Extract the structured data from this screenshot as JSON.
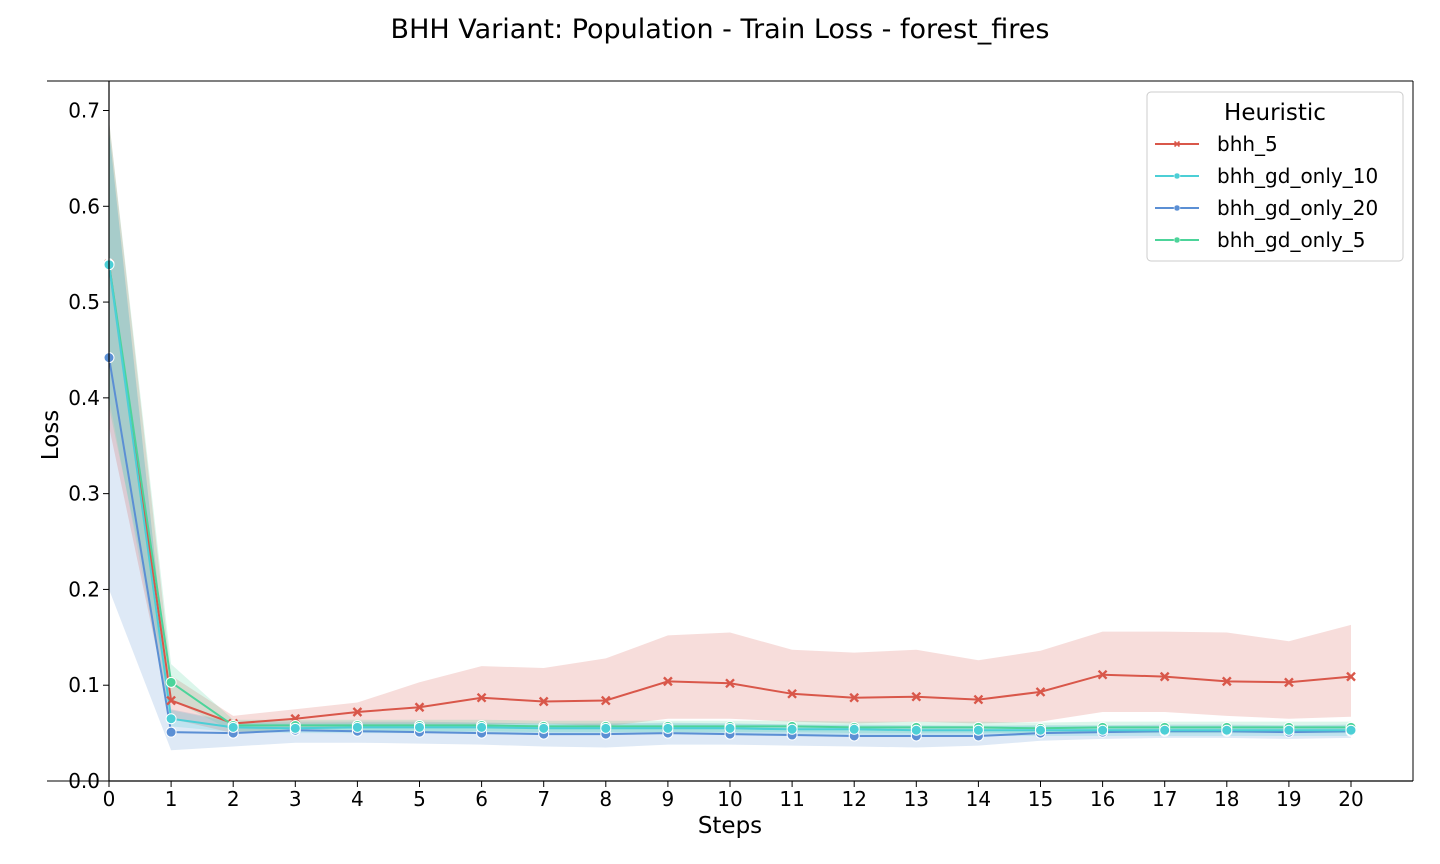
{
  "chart_data": {
    "type": "line",
    "title": "BHH Variant: Population - Train Loss - forest_fires",
    "xlabel": "Steps",
    "ylabel": "Loss",
    "xlim": [
      0,
      21
    ],
    "ylim": [
      0.0,
      0.73
    ],
    "xticks": [
      0,
      1,
      2,
      3,
      4,
      5,
      6,
      7,
      8,
      9,
      10,
      11,
      12,
      13,
      14,
      15,
      16,
      17,
      18,
      19,
      20
    ],
    "yticks": [
      0.0,
      0.1,
      0.2,
      0.3,
      0.4,
      0.5,
      0.6,
      0.7
    ],
    "ytick_labels": [
      "0.0",
      "0.1",
      "0.2",
      "0.3",
      "0.4",
      "0.5",
      "0.6",
      "0.7"
    ],
    "legend": {
      "title": "Heuristic",
      "position": "top-right"
    },
    "x": [
      0,
      1,
      2,
      3,
      4,
      5,
      6,
      7,
      8,
      9,
      10,
      11,
      12,
      13,
      14,
      15,
      16,
      17,
      18,
      19,
      20
    ],
    "series": [
      {
        "name": "bhh_gd_only_20",
        "color": "#5b8fd4",
        "marker": "circle",
        "values": [
          0.442,
          0.051,
          0.05,
          0.053,
          0.052,
          0.051,
          0.05,
          0.049,
          0.049,
          0.05,
          0.049,
          0.048,
          0.047,
          0.047,
          0.047,
          0.05,
          0.051,
          0.052,
          0.052,
          0.051,
          0.052
        ],
        "lower": [
          0.2,
          0.032,
          0.036,
          0.04,
          0.04,
          0.039,
          0.038,
          0.036,
          0.035,
          0.038,
          0.038,
          0.037,
          0.036,
          0.035,
          0.037,
          0.042,
          0.044,
          0.045,
          0.045,
          0.044,
          0.045
        ],
        "upper": [
          0.68,
          0.075,
          0.062,
          0.062,
          0.062,
          0.062,
          0.061,
          0.06,
          0.06,
          0.061,
          0.06,
          0.059,
          0.058,
          0.058,
          0.057,
          0.058,
          0.058,
          0.059,
          0.059,
          0.058,
          0.059
        ]
      },
      {
        "name": "bhh_5",
        "color": "#d9574a",
        "marker": "x",
        "values": [
          0.54,
          0.084,
          0.06,
          0.065,
          0.072,
          0.077,
          0.087,
          0.083,
          0.084,
          0.104,
          0.102,
          0.091,
          0.087,
          0.088,
          0.085,
          0.093,
          0.111,
          0.109,
          0.104,
          0.103,
          0.109
        ],
        "lower": [
          0.37,
          0.065,
          0.05,
          0.055,
          0.056,
          0.058,
          0.059,
          0.06,
          0.057,
          0.065,
          0.065,
          0.062,
          0.06,
          0.062,
          0.06,
          0.062,
          0.072,
          0.072,
          0.068,
          0.065,
          0.067
        ],
        "upper": [
          0.69,
          0.11,
          0.068,
          0.075,
          0.082,
          0.103,
          0.12,
          0.118,
          0.128,
          0.152,
          0.155,
          0.137,
          0.134,
          0.137,
          0.126,
          0.136,
          0.156,
          0.156,
          0.155,
          0.146,
          0.163
        ]
      },
      {
        "name": "bhh_gd_only_5",
        "color": "#4cd49a",
        "marker": "circle",
        "values": [
          0.54,
          0.103,
          0.058,
          0.058,
          0.058,
          0.058,
          0.058,
          0.057,
          0.057,
          0.057,
          0.057,
          0.057,
          0.056,
          0.056,
          0.056,
          0.055,
          0.056,
          0.056,
          0.056,
          0.056,
          0.056
        ],
        "lower": [
          0.39,
          0.085,
          0.052,
          0.052,
          0.052,
          0.052,
          0.052,
          0.051,
          0.051,
          0.051,
          0.051,
          0.051,
          0.05,
          0.05,
          0.05,
          0.05,
          0.05,
          0.05,
          0.05,
          0.05,
          0.05
        ],
        "upper": [
          0.69,
          0.122,
          0.064,
          0.064,
          0.064,
          0.064,
          0.064,
          0.063,
          0.063,
          0.063,
          0.063,
          0.063,
          0.062,
          0.062,
          0.062,
          0.061,
          0.062,
          0.062,
          0.062,
          0.062,
          0.062
        ]
      },
      {
        "name": "bhh_gd_only_10",
        "color": "#4ccfd6",
        "marker": "circle",
        "values": [
          0.539,
          0.065,
          0.056,
          0.055,
          0.056,
          0.056,
          0.056,
          0.055,
          0.055,
          0.055,
          0.055,
          0.054,
          0.054,
          0.053,
          0.053,
          0.053,
          0.053,
          0.053,
          0.053,
          0.053,
          0.053
        ],
        "lower": [
          0.4,
          0.057,
          0.051,
          0.05,
          0.05,
          0.05,
          0.05,
          0.049,
          0.049,
          0.049,
          0.049,
          0.048,
          0.048,
          0.047,
          0.047,
          0.047,
          0.047,
          0.047,
          0.047,
          0.047,
          0.047
        ],
        "upper": [
          0.68,
          0.074,
          0.061,
          0.06,
          0.061,
          0.061,
          0.061,
          0.06,
          0.06,
          0.06,
          0.06,
          0.059,
          0.059,
          0.058,
          0.058,
          0.058,
          0.058,
          0.058,
          0.058,
          0.058,
          0.058
        ]
      }
    ],
    "legend_order": [
      "bhh_5",
      "bhh_gd_only_10",
      "bhh_gd_only_20",
      "bhh_gd_only_5"
    ]
  }
}
